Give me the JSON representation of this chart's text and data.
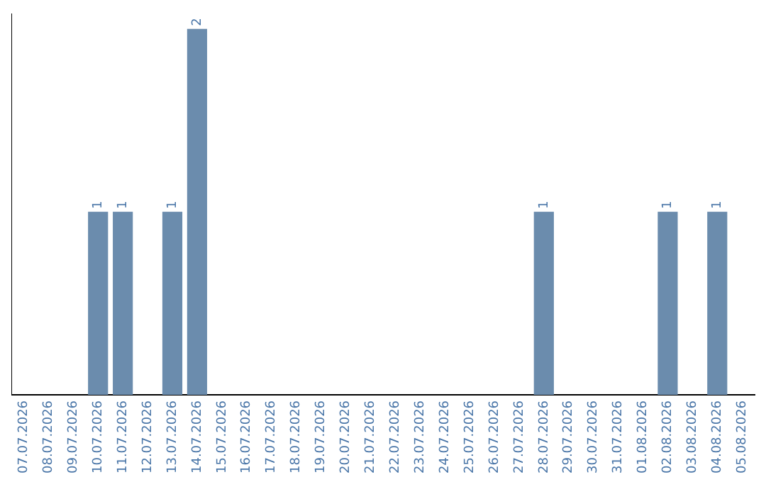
{
  "chart_data": {
    "type": "bar",
    "categories": [
      "07.07.2026",
      "08.07.2026",
      "09.07.2026",
      "10.07.2026",
      "11.07.2026",
      "12.07.2026",
      "13.07.2026",
      "14.07.2026",
      "15.07.2026",
      "16.07.2026",
      "17.07.2026",
      "18.07.2026",
      "19.07.2026",
      "20.07.2026",
      "21.07.2026",
      "22.07.2026",
      "23.07.2026",
      "24.07.2026",
      "25.07.2026",
      "26.07.2026",
      "27.07.2026",
      "28.07.2026",
      "29.07.2026",
      "30.07.2026",
      "31.07.2026",
      "01.08.2026",
      "02.08.2026",
      "03.08.2026",
      "04.08.2026",
      "05.08.2026"
    ],
    "values": [
      0,
      0,
      0,
      1,
      1,
      0,
      1,
      2,
      0,
      0,
      0,
      0,
      0,
      0,
      0,
      0,
      0,
      0,
      0,
      0,
      0,
      1,
      0,
      0,
      0,
      0,
      1,
      0,
      1,
      0
    ],
    "value_labels": [
      null,
      null,
      null,
      "1",
      "1",
      null,
      "1",
      "2",
      null,
      null,
      null,
      null,
      null,
      null,
      null,
      null,
      null,
      null,
      null,
      null,
      null,
      "1",
      null,
      null,
      null,
      null,
      "1",
      null,
      "1",
      null
    ],
    "color": "#6b8cad",
    "grid": false,
    "legend": false
  }
}
